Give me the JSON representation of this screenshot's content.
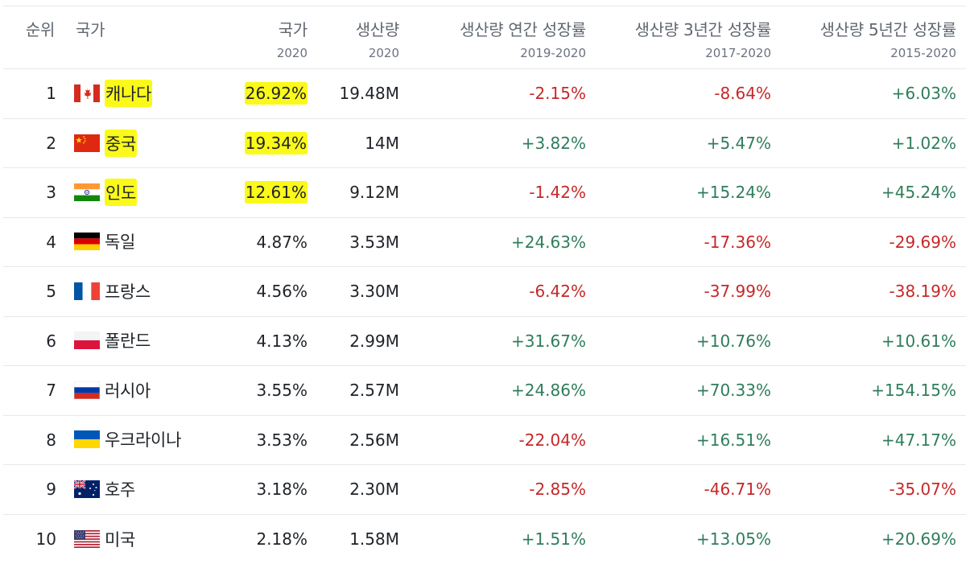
{
  "colors": {
    "highlight": "#fbf91a",
    "negative": "#c62828",
    "positive": "#2f7d5b",
    "header_text": "#606770",
    "border": "#e6e8eb"
  },
  "header": {
    "rank": "순위",
    "country": "국가",
    "share": {
      "label": "국가",
      "sub": "2020"
    },
    "production": {
      "label": "생산량",
      "sub": "2020"
    },
    "growth_1y": {
      "label": "생산량 연간 성장률",
      "sub": "2019-2020"
    },
    "growth_3y": {
      "label": "생산량 3년간 성장률",
      "sub": "2017-2020"
    },
    "growth_5y": {
      "label": "생산량 5년간 성장률",
      "sub": "2015-2020"
    }
  },
  "rows": [
    {
      "rank": "1",
      "flag": "canada-flag-icon",
      "name": "캐나다",
      "share": "26.92%",
      "production": "19.48M",
      "g1": "-2.15%",
      "g3": "-8.64%",
      "g5": "+6.03%",
      "highlight": true
    },
    {
      "rank": "2",
      "flag": "china-flag-icon",
      "name": "중국",
      "share": "19.34%",
      "production": "14M",
      "g1": "+3.82%",
      "g3": "+5.47%",
      "g5": "+1.02%",
      "highlight": true
    },
    {
      "rank": "3",
      "flag": "india-flag-icon",
      "name": "인도",
      "share": "12.61%",
      "production": "9.12M",
      "g1": "-1.42%",
      "g3": "+15.24%",
      "g5": "+45.24%",
      "highlight": true
    },
    {
      "rank": "4",
      "flag": "germany-flag-icon",
      "name": "독일",
      "share": "4.87%",
      "production": "3.53M",
      "g1": "+24.63%",
      "g3": "-17.36%",
      "g5": "-29.69%"
    },
    {
      "rank": "5",
      "flag": "france-flag-icon",
      "name": "프랑스",
      "share": "4.56%",
      "production": "3.30M",
      "g1": "-6.42%",
      "g3": "-37.99%",
      "g5": "-38.19%"
    },
    {
      "rank": "6",
      "flag": "poland-flag-icon",
      "name": "폴란드",
      "share": "4.13%",
      "production": "2.99M",
      "g1": "+31.67%",
      "g3": "+10.76%",
      "g5": "+10.61%"
    },
    {
      "rank": "7",
      "flag": "russia-flag-icon",
      "name": "러시아",
      "share": "3.55%",
      "production": "2.57M",
      "g1": "+24.86%",
      "g3": "+70.33%",
      "g5": "+154.15%"
    },
    {
      "rank": "8",
      "flag": "ukraine-flag-icon",
      "name": "우크라이나",
      "share": "3.53%",
      "production": "2.56M",
      "g1": "-22.04%",
      "g3": "+16.51%",
      "g5": "+47.17%"
    },
    {
      "rank": "9",
      "flag": "australia-flag-icon",
      "name": "호주",
      "share": "3.18%",
      "production": "2.30M",
      "g1": "-2.85%",
      "g3": "-46.71%",
      "g5": "-35.07%"
    },
    {
      "rank": "10",
      "flag": "usa-flag-icon",
      "name": "미국",
      "share": "2.18%",
      "production": "1.58M",
      "g1": "+1.51%",
      "g3": "+13.05%",
      "g5": "+20.69%"
    }
  ]
}
